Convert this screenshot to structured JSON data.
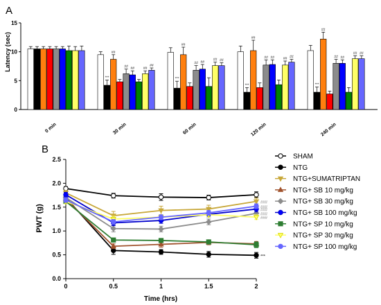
{
  "chart_data": [
    {
      "type": "bar",
      "panel_label": "A",
      "ylabel": "Latency (sec)",
      "ylim": [
        0,
        15
      ],
      "yticks": [
        0,
        5,
        10,
        15
      ],
      "categories": [
        "0 min",
        "30 min",
        "60 min",
        "120 min",
        "240 min"
      ],
      "series": [
        {
          "color": "#ffffff",
          "values": [
            10.5,
            9.5,
            9.9,
            10.0,
            10.2
          ],
          "errors": [
            0.4,
            0.5,
            0.8,
            1.0,
            0.9
          ],
          "sig": [
            "",
            "",
            "",
            "",
            ""
          ]
        },
        {
          "color": "#000000",
          "values": [
            10.5,
            4.2,
            3.7,
            3.0,
            3.0
          ],
          "errors": [
            0.4,
            0.9,
            1.2,
            0.8,
            0.9
          ],
          "sig": [
            "",
            "***",
            "***",
            "***",
            "***"
          ]
        },
        {
          "color": "#ff7f0e",
          "values": [
            10.5,
            8.7,
            9.5,
            10.2,
            12.2
          ],
          "errors": [
            0.4,
            0.8,
            1.3,
            1.8,
            1.2
          ],
          "sig": [
            "",
            "##",
            "##",
            "##",
            "##"
          ]
        },
        {
          "color": "#ff0000",
          "values": [
            10.5,
            4.8,
            4.0,
            3.8,
            2.7
          ],
          "errors": [
            0.4,
            0.4,
            0.6,
            0.8,
            0.5
          ],
          "sig": [
            "",
            "",
            "",
            "",
            ""
          ]
        },
        {
          "color": "#8c8c8c",
          "values": [
            10.5,
            6.2,
            6.8,
            7.7,
            8.0
          ],
          "errors": [
            0.4,
            0.8,
            0.8,
            0.9,
            0.7
          ],
          "sig": [
            "",
            "##",
            "##",
            "##",
            "##"
          ]
        },
        {
          "color": "#0000ff",
          "values": [
            10.5,
            6.0,
            7.0,
            7.8,
            8.0
          ],
          "errors": [
            0.4,
            0.7,
            0.8,
            0.8,
            0.6
          ],
          "sig": [
            "",
            "##",
            "##",
            "##",
            "##"
          ]
        },
        {
          "color": "#008000",
          "values": [
            10.2,
            4.8,
            4.0,
            4.3,
            3.0
          ],
          "errors": [
            0.8,
            0.4,
            1.5,
            0.8,
            0.8
          ],
          "sig": [
            "",
            "",
            "",
            "",
            ""
          ]
        },
        {
          "color": "#ffff66",
          "values": [
            10.2,
            6.2,
            7.6,
            7.7,
            8.8
          ],
          "errors": [
            0.7,
            0.5,
            0.6,
            0.7,
            0.5
          ],
          "sig": [
            "",
            "##",
            "##",
            "##",
            "##"
          ]
        },
        {
          "color": "#6666ff",
          "values": [
            10.2,
            6.8,
            7.6,
            8.2,
            8.8
          ],
          "errors": [
            0.8,
            0.4,
            0.5,
            0.5,
            0.5
          ],
          "sig": [
            "",
            "##",
            "##",
            "##",
            "##"
          ]
        }
      ]
    },
    {
      "type": "line",
      "panel_label": "B",
      "xlabel": "Time (hrs)",
      "ylabel": "PWT (g)",
      "xlim": [
        0,
        2
      ],
      "ylim": [
        0,
        2.5
      ],
      "xticks": [
        "0",
        "0.5",
        "1",
        "1.5",
        "2"
      ],
      "yticks": [
        "0.0",
        "0.5",
        "1.0",
        "1.5",
        "2.0",
        "2.5"
      ],
      "x": [
        0,
        0.5,
        1,
        1.5,
        2
      ],
      "legend_position": "right",
      "series": [
        {
          "name": "SHAM",
          "color": "#000000",
          "fill": "#ffffff",
          "marker": "circle-open",
          "y": [
            1.89,
            1.74,
            1.71,
            1.7,
            1.76
          ],
          "err": [
            0.04,
            0.05,
            0.07,
            0.05,
            0.06
          ],
          "sig": ""
        },
        {
          "name": "NTG",
          "color": "#000000",
          "fill": "#000000",
          "marker": "circle",
          "y": [
            1.7,
            0.59,
            0.56,
            0.51,
            0.49
          ],
          "err": [
            0.08,
            0.08,
            0.05,
            0.06,
            0.06
          ],
          "sig": "***"
        },
        {
          "name": "NTG+SUMATRIPTAN",
          "color": "#c8a83a",
          "fill": "#c8a83a",
          "marker": "triangle-down",
          "y": [
            1.8,
            1.32,
            1.43,
            1.46,
            1.62
          ],
          "err": [
            0.05,
            0.09,
            0.09,
            0.08,
            0.07
          ],
          "sig": "###"
        },
        {
          "name": "NTG+ SB 10 mg/kg",
          "color": "#a0522d",
          "fill": "#a0522d",
          "marker": "triangle-up",
          "y": [
            1.67,
            0.68,
            0.72,
            0.76,
            0.73
          ],
          "err": [
            0.06,
            0.05,
            0.06,
            0.05,
            0.05
          ],
          "sig": ""
        },
        {
          "name": "NTG+ SB 30 mg/kg",
          "color": "#8c8c8c",
          "fill": "#8c8c8c",
          "marker": "diamond",
          "y": [
            1.7,
            1.05,
            1.04,
            1.19,
            1.37
          ],
          "err": [
            0.05,
            0.07,
            0.06,
            0.06,
            0.06
          ],
          "sig": "###"
        },
        {
          "name": "NTG+ SB 100 mg/kg",
          "color": "#0000cc",
          "fill": "#0000ff",
          "marker": "circle",
          "y": [
            1.76,
            1.17,
            1.22,
            1.35,
            1.46
          ],
          "err": [
            0.05,
            0.06,
            0.06,
            0.06,
            0.06
          ],
          "sig": "###"
        },
        {
          "name": "NTG+ SP 10 mg/kg",
          "color": "#2e7d32",
          "fill": "#2e7d32",
          "marker": "square",
          "y": [
            1.62,
            0.81,
            0.8,
            0.77,
            0.71
          ],
          "err": [
            0.05,
            0.04,
            0.04,
            0.04,
            0.06
          ],
          "sig": ""
        },
        {
          "name": "NTG+ SP 30 mg/kg",
          "color": "#ffff66",
          "fill": "#ffff66",
          "marker": "triangle-down",
          "y": [
            1.62,
            1.25,
            1.29,
            1.34,
            1.29
          ],
          "err": [
            0.05,
            0.06,
            0.05,
            0.05,
            0.05
          ],
          "sig": "###"
        },
        {
          "name": "NTG+ SP 100 mg/kg",
          "color": "#6666ff",
          "fill": "#6666ff",
          "marker": "circle",
          "y": [
            1.65,
            1.19,
            1.29,
            1.38,
            1.52
          ],
          "err": [
            0.05,
            0.05,
            0.05,
            0.05,
            0.05
          ],
          "sig": "###"
        }
      ]
    }
  ]
}
